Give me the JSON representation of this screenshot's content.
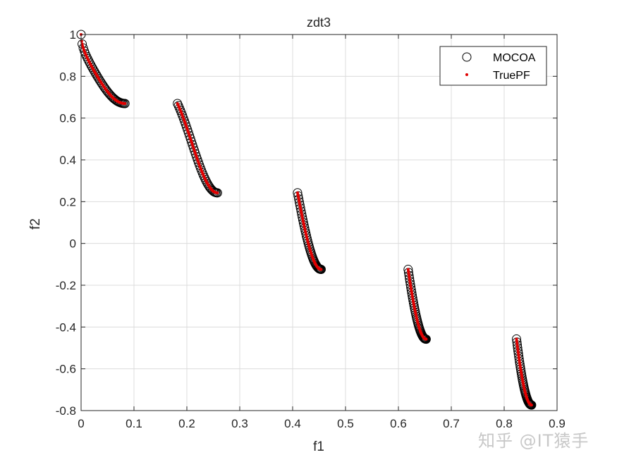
{
  "chart_data": {
    "type": "scatter",
    "title": "zdt3",
    "xlabel": "f1",
    "ylabel": "f2",
    "xlim": [
      0,
      0.9
    ],
    "ylim": [
      -0.8,
      1
    ],
    "xticks": [
      "0",
      "0.1",
      "0.2",
      "0.3",
      "0.4",
      "0.5",
      "0.6",
      "0.7",
      "0.8",
      "0.9"
    ],
    "yticks": [
      "-0.8",
      "-0.6",
      "-0.4",
      "-0.2",
      "0",
      "0.2",
      "0.4",
      "0.6",
      "0.8",
      "1"
    ],
    "grid": true,
    "legend_position": "northeast",
    "segments_f1": [
      [
        0,
        0.083
      ],
      [
        0.1822,
        0.2578
      ],
      [
        0.4093,
        0.4539
      ],
      [
        0.6184,
        0.6525
      ],
      [
        0.8233,
        0.8518
      ]
    ],
    "series": [
      {
        "name": "MOCOA",
        "marker": "open-circle",
        "color": "#000000"
      },
      {
        "name": "TruePF",
        "marker": "dot",
        "color": "#e00000"
      }
    ]
  },
  "legend": {
    "items": [
      "MOCOA",
      "TruePF"
    ]
  },
  "watermark": "知乎 @IT猿手"
}
